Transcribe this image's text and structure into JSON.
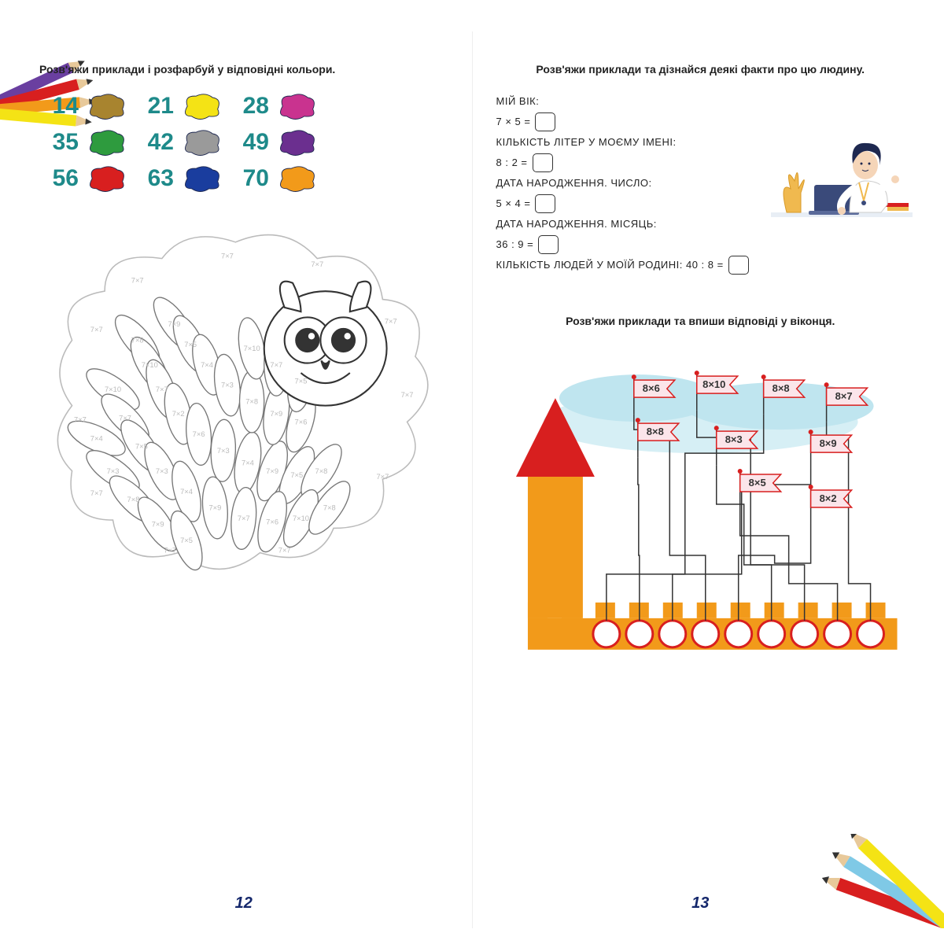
{
  "left": {
    "instruction": "Розв'яжи приклади і розфарбуй у відповідні кольори.",
    "legend": [
      {
        "num": "14",
        "color": "#a8842f"
      },
      {
        "num": "21",
        "color": "#f4e315"
      },
      {
        "num": "28",
        "color": "#c9338f"
      },
      {
        "num": "35",
        "color": "#2e9b3e"
      },
      {
        "num": "42",
        "color": "#9a9a9a"
      },
      {
        "num": "49",
        "color": "#6b2f8f"
      },
      {
        "num": "56",
        "color": "#d81f1f"
      },
      {
        "num": "63",
        "color": "#1a3d9e"
      },
      {
        "num": "70",
        "color": "#f29a1a"
      }
    ],
    "owl_labels": [
      "7×8",
      "7×10",
      "7×7",
      "7×2",
      "7×6",
      "7×3",
      "7×4",
      "7×9",
      "7×5",
      "7×8",
      "7×10",
      "7×7",
      "7×5",
      "7×3",
      "7×4",
      "7×9",
      "7×7",
      "7×6",
      "7×10",
      "7×8",
      "7×9",
      "7×5",
      "7×4",
      "7×3",
      "7×8",
      "7×9",
      "7×6",
      "7×10",
      "7×7",
      "7×5",
      "7×4",
      "7×3",
      "7×8",
      "7×9",
      "7×5"
    ],
    "page_num": "12"
  },
  "right": {
    "instruction": "Розв'яжи приклади та дізнайся деякі факти про цю людину.",
    "facts": [
      {
        "label": "МІЙ ВІК:",
        "expr": "7 × 5 ="
      },
      {
        "label": "КІЛЬКІСТЬ ЛІТЕР У МОЄМУ ІМЕНІ:",
        "expr": "8 : 2 ="
      },
      {
        "label": "ДАТА НАРОДЖЕННЯ. ЧИСЛО:",
        "expr": "5 × 4 ="
      },
      {
        "label": "ДАТА НАРОДЖЕННЯ. МІСЯЦЬ:",
        "expr": "36 : 9 ="
      },
      {
        "label_inline": "КІЛЬКІСТЬ ЛЮДЕЙ У МОЇЙ РОДИНІ: 40 : 8 ="
      }
    ],
    "castle_instruction": "Розв'яжи приклади та впиши відповіді у віконця.",
    "flags": [
      "8×6",
      "8×10",
      "8×8",
      "8×7",
      "8×8",
      "8×3",
      "8×9",
      "8×5",
      "8×2"
    ],
    "answer_count": 9,
    "page_num": "13",
    "colors": {
      "tower": "#f29a1a",
      "roof": "#d81f1f",
      "wall": "#f29a1a",
      "sky1": "#bfe5ef",
      "sky2": "#d6eff5",
      "flag_fill": "#fbe5ea",
      "flag_stroke": "#d81f1f",
      "flag_pole": "#333",
      "flag_knob": "#d81f1f"
    }
  },
  "pencils": {
    "top_left": [
      "#6a3fa0",
      "#d81f1f",
      "#f29a1a",
      "#f4e315"
    ],
    "bottom_right": [
      "#d81f1f",
      "#7fc9e6",
      "#f4e315"
    ]
  }
}
